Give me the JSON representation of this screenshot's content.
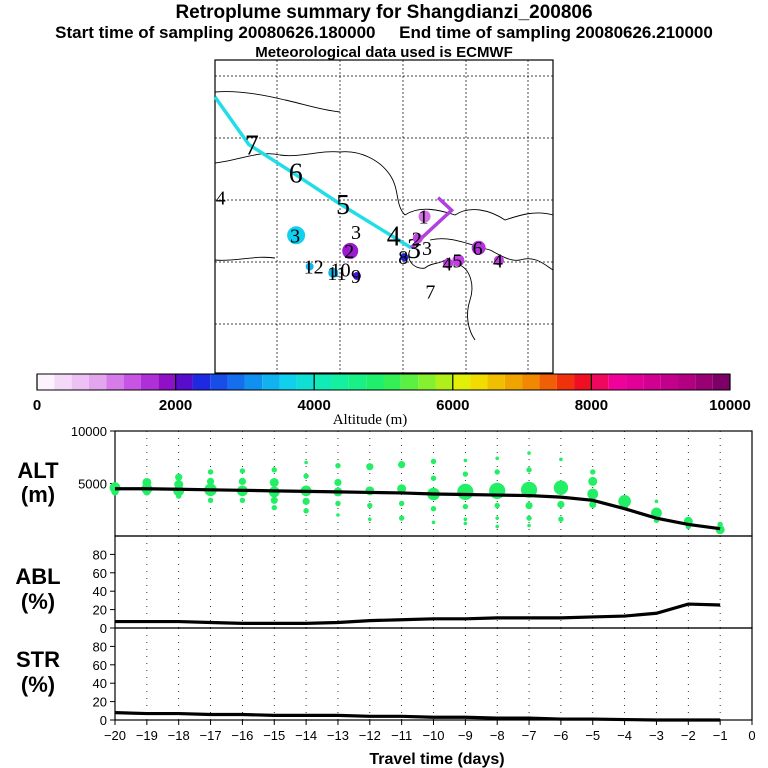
{
  "title": "Retroplume summary for Shangdianzi_200806",
  "start_label": "Start time of sampling 20080626.180000",
  "end_label": "End time of sampling 20080626.210000",
  "met_label": "Meteorological data used is ECMWF",
  "chart_data": [
    {
      "type": "map",
      "description_markers": "cluster numbers",
      "track": [
        {
          "label": "7",
          "lon": 10,
          "lat": 73
        },
        {
          "label": "6",
          "lon": 23,
          "lat": 64
        },
        {
          "label": "5",
          "lon": 37,
          "lat": 54
        },
        {
          "label": "4",
          "lon": 52,
          "lat": 44
        },
        {
          "label": "3",
          "lon": 58,
          "lat": 40
        }
      ],
      "clusters": [
        {
          "label": "4",
          "lon": 2,
          "lat": 56,
          "alt": 4000,
          "size": 0
        },
        {
          "label": "3",
          "lon": 24,
          "lat": 44,
          "alt": 3600,
          "size": 9
        },
        {
          "label": "3",
          "lon": 42,
          "lat": 45,
          "alt": 2500,
          "size": 0
        },
        {
          "label": "2",
          "lon": 40,
          "lat": 39,
          "alt": 1800,
          "size": 8
        },
        {
          "label": "12",
          "lon": 28,
          "lat": 34,
          "alt": 3400,
          "size": 4
        },
        {
          "label": "11",
          "lon": 35,
          "lat": 32,
          "alt": 3400,
          "size": 5
        },
        {
          "label": "10",
          "lon": 36,
          "lat": 33,
          "alt": 3400,
          "size": 0
        },
        {
          "label": "9",
          "lon": 42,
          "lat": 31,
          "alt": 2200,
          "size": 4
        },
        {
          "label": "8",
          "lon": 56,
          "lat": 37,
          "alt": 2300,
          "size": 4
        },
        {
          "label": "7",
          "lon": 64,
          "lat": 26,
          "alt": 5000,
          "size": 0
        },
        {
          "label": "6",
          "lon": 78,
          "lat": 40,
          "alt": 1600,
          "size": 7
        },
        {
          "label": "5",
          "lon": 72,
          "lat": 36,
          "alt": 1500,
          "size": 6
        },
        {
          "label": "4",
          "lon": 69,
          "lat": 35,
          "alt": 1500,
          "size": 5
        },
        {
          "label": "4",
          "lon": 84,
          "lat": 36,
          "alt": 1500,
          "size": 5
        },
        {
          "label": "3",
          "lon": 63,
          "lat": 40,
          "alt": 1500,
          "size": 0
        },
        {
          "label": "2",
          "lon": 60,
          "lat": 43,
          "alt": 1500,
          "size": 5
        },
        {
          "label": "1",
          "lon": 62,
          "lat": 50,
          "alt": 1200,
          "size": 6
        }
      ],
      "colorbar": {
        "label": "Altitude (m)",
        "ticks": [
          0,
          2000,
          4000,
          6000,
          8000,
          10000
        ],
        "range": [
          0,
          10000
        ]
      }
    },
    {
      "type": "scatter+line",
      "ylabel": "ALT\n(m)",
      "ylabel_line1": "ALT",
      "ylabel_line2": "(m)",
      "ylim": [
        0,
        10000
      ],
      "yticks": [
        5000,
        10000
      ],
      "x": [
        -20,
        -19,
        -18,
        -17,
        -16,
        -15,
        -14,
        -13,
        -12,
        -11,
        -10,
        -9,
        -8,
        -7,
        -6,
        -5,
        -4,
        -3,
        -2,
        -1
      ],
      "mean_altitude": [
        4500,
        4500,
        4450,
        4400,
        4350,
        4300,
        4250,
        4200,
        4150,
        4100,
        4000,
        3950,
        3900,
        3850,
        3700,
        3400,
        2600,
        1700,
        1100,
        700
      ],
      "points": [
        [
          -20,
          4600,
          6
        ],
        [
          -20,
          4200,
          4
        ],
        [
          -19,
          5100,
          5
        ],
        [
          -19,
          4500,
          6
        ],
        [
          -19,
          4200,
          4
        ],
        [
          -18,
          5600,
          4
        ],
        [
          -18,
          4900,
          5
        ],
        [
          -18,
          4300,
          6
        ],
        [
          -18,
          3800,
          3
        ],
        [
          -17,
          6100,
          3
        ],
        [
          -17,
          5200,
          4
        ],
        [
          -17,
          4400,
          7
        ],
        [
          -17,
          3400,
          3
        ],
        [
          -16,
          6200,
          3
        ],
        [
          -16,
          5200,
          4
        ],
        [
          -16,
          4300,
          6
        ],
        [
          -16,
          3400,
          3
        ],
        [
          -15,
          6300,
          3
        ],
        [
          -15,
          5100,
          5
        ],
        [
          -15,
          4200,
          6
        ],
        [
          -15,
          3400,
          4
        ],
        [
          -15,
          2700,
          3
        ],
        [
          -14,
          7000,
          2
        ],
        [
          -14,
          5700,
          3
        ],
        [
          -14,
          4300,
          6
        ],
        [
          -14,
          3300,
          4
        ],
        [
          -14,
          2400,
          3
        ],
        [
          -13,
          6700,
          3
        ],
        [
          -13,
          5100,
          4
        ],
        [
          -13,
          4200,
          5
        ],
        [
          -13,
          3100,
          3
        ],
        [
          -13,
          2000,
          2
        ],
        [
          -12,
          6600,
          4
        ],
        [
          -12,
          4300,
          5
        ],
        [
          -12,
          2900,
          3
        ],
        [
          -12,
          1600,
          2
        ],
        [
          -11,
          6800,
          4
        ],
        [
          -11,
          4500,
          5
        ],
        [
          -11,
          3100,
          3
        ],
        [
          -11,
          1700,
          3
        ],
        [
          -10,
          7100,
          3
        ],
        [
          -10,
          5500,
          3
        ],
        [
          -10,
          4000,
          7
        ],
        [
          -10,
          2600,
          3
        ],
        [
          -10,
          1300,
          2
        ],
        [
          -9,
          7200,
          2
        ],
        [
          -9,
          5900,
          3
        ],
        [
          -9,
          4200,
          9
        ],
        [
          -9,
          2800,
          3
        ],
        [
          -9,
          1600,
          2
        ],
        [
          -9,
          1200,
          2
        ],
        [
          -8,
          7400,
          2
        ],
        [
          -8,
          6100,
          3
        ],
        [
          -8,
          4300,
          9
        ],
        [
          -8,
          2900,
          3
        ],
        [
          -8,
          1700,
          2
        ],
        [
          -8,
          900,
          2
        ],
        [
          -7,
          7900,
          2
        ],
        [
          -7,
          6300,
          3
        ],
        [
          -7,
          4400,
          9
        ],
        [
          -7,
          2900,
          4
        ],
        [
          -7,
          1700,
          3
        ],
        [
          -7,
          1000,
          2
        ],
        [
          -6,
          7300,
          2
        ],
        [
          -6,
          4600,
          8
        ],
        [
          -6,
          3000,
          4
        ],
        [
          -6,
          1600,
          3
        ],
        [
          -5,
          6100,
          3
        ],
        [
          -5,
          5200,
          5
        ],
        [
          -5,
          4000,
          6
        ],
        [
          -5,
          3000,
          4
        ],
        [
          -4,
          3300,
          7
        ],
        [
          -4,
          2800,
          4
        ],
        [
          -3,
          2200,
          6
        ],
        [
          -3,
          3300,
          2
        ],
        [
          -3,
          1500,
          3
        ],
        [
          -2,
          1400,
          5
        ],
        [
          -2,
          900,
          3
        ],
        [
          -1,
          1100,
          3
        ],
        [
          -1,
          600,
          5
        ]
      ]
    },
    {
      "type": "line",
      "ylabel_line1": "ABL",
      "ylabel_line2": "(%)",
      "ylim": [
        0,
        100
      ],
      "yticks": [
        0,
        20,
        40,
        60,
        80
      ],
      "x": [
        -20,
        -19,
        -18,
        -17,
        -16,
        -15,
        -14,
        -13,
        -12,
        -11,
        -10,
        -9,
        -8,
        -7,
        -6,
        -5,
        -4,
        -3,
        -2,
        -1
      ],
      "values": [
        7,
        7,
        7,
        6,
        5,
        5,
        5,
        6,
        8,
        9,
        10,
        10,
        11,
        11,
        11,
        12,
        13,
        16,
        26,
        25
      ]
    },
    {
      "type": "line",
      "ylabel_line1": "STR",
      "ylabel_line2": "(%)",
      "ylim": [
        0,
        100
      ],
      "yticks": [
        0,
        20,
        40,
        60,
        80
      ],
      "x": [
        -20,
        -19,
        -18,
        -17,
        -16,
        -15,
        -14,
        -13,
        -12,
        -11,
        -10,
        -9,
        -8,
        -7,
        -6,
        -5,
        -4,
        -3,
        -2,
        -1
      ],
      "values": [
        8,
        7,
        7,
        6,
        6,
        5,
        5,
        5,
        4,
        4,
        3,
        3,
        2,
        2,
        1,
        1,
        0.5,
        0,
        0,
        0
      ],
      "xlabel": "Travel time (days)",
      "xticks": [
        -20,
        -19,
        -18,
        -17,
        -16,
        -15,
        -14,
        -13,
        -12,
        -11,
        -10,
        -9,
        -8,
        -7,
        -6,
        -5,
        -4,
        -3,
        -2,
        -1,
        0
      ]
    }
  ],
  "colors": {
    "track": "#22dde8",
    "track_recent": "#b040e0",
    "scatter": "#22ee66",
    "line": "#000000"
  }
}
